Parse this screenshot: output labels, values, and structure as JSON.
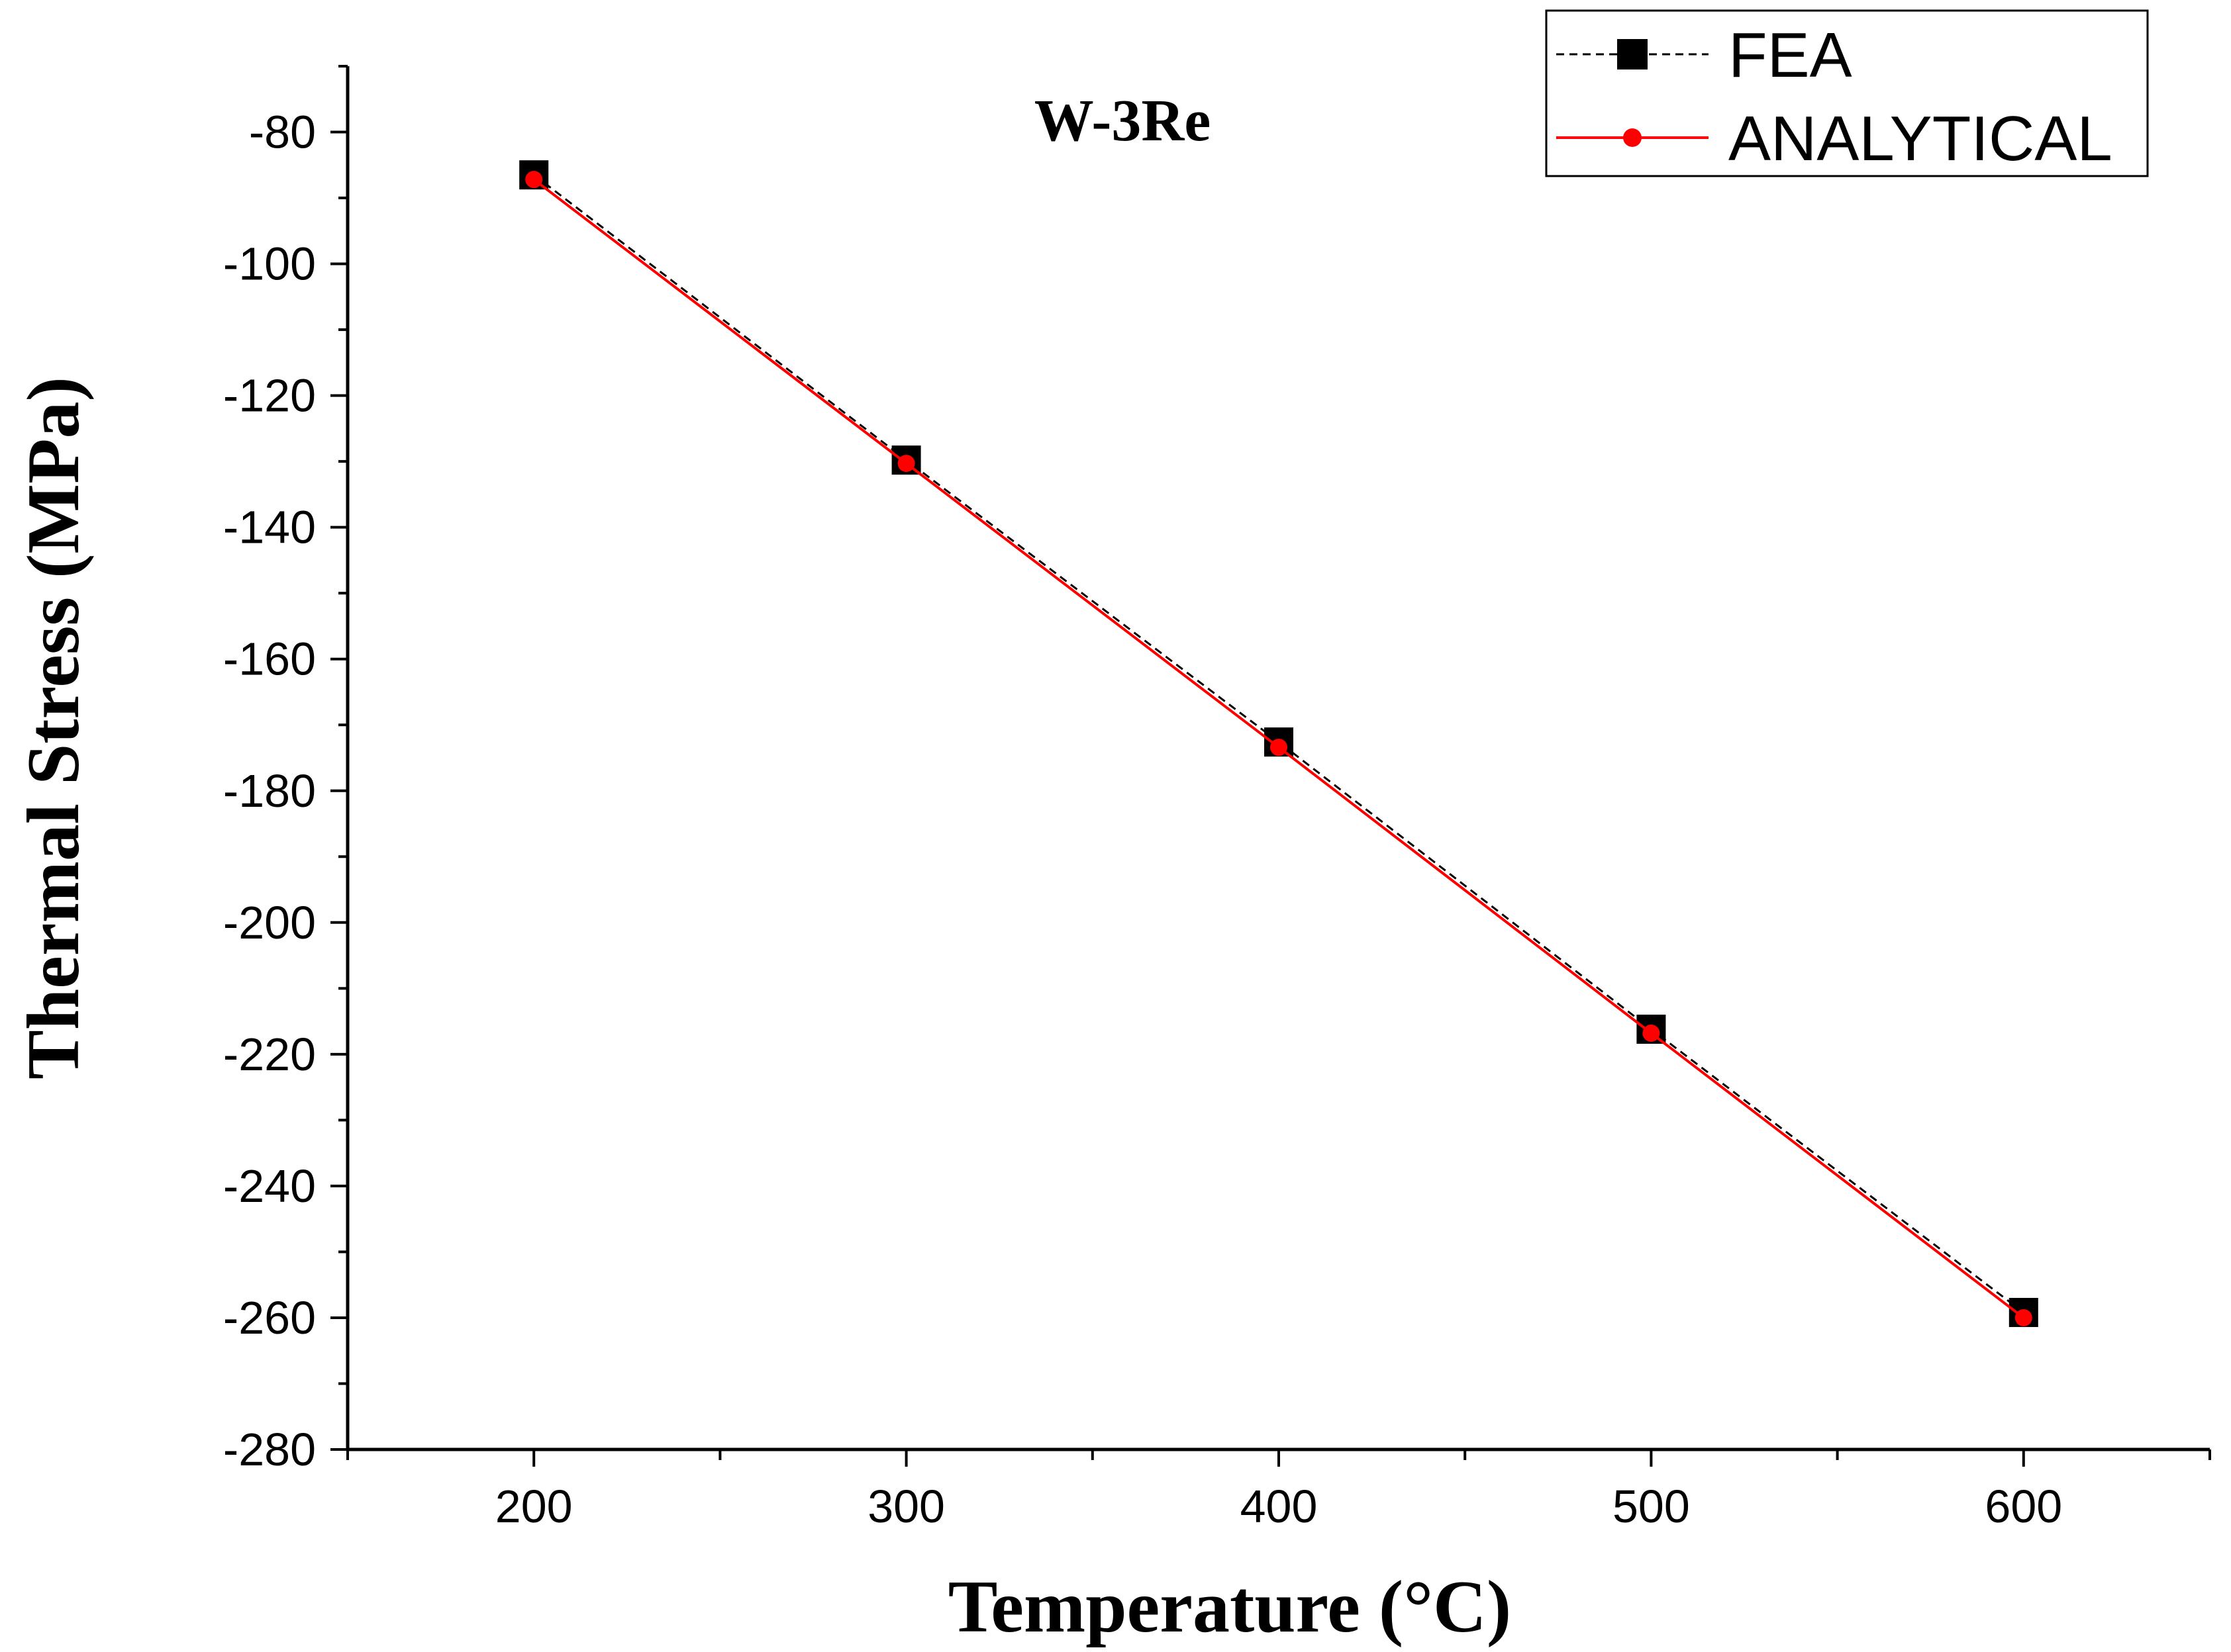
{
  "chart_data": {
    "type": "line",
    "title": "W-3Re",
    "xlabel": "Temperature (°C)",
    "ylabel": "Thermal Stress (MPa)",
    "xlim": [
      150,
      650
    ],
    "ylim": [
      -280,
      -70
    ],
    "x_ticks": [
      200,
      300,
      400,
      500,
      600
    ],
    "x_tick_labels": [
      "200",
      "300",
      "400",
      "500",
      "600"
    ],
    "y_ticks": [
      -80,
      -100,
      -120,
      -140,
      -160,
      -180,
      -200,
      -220,
      -240,
      -260,
      -280
    ],
    "y_tick_labels": [
      "-80",
      "-100",
      "-120",
      "-140",
      "-160",
      "-180",
      "-200",
      "-220",
      "-240",
      "-260",
      "-280"
    ],
    "grid": false,
    "legend_position": "top-right",
    "x": [
      200,
      300,
      400,
      500,
      600
    ],
    "series": [
      {
        "name": "FEA",
        "values": [
          -86.5,
          -129.8,
          -172.6,
          -216.2,
          -259.2
        ],
        "color": "#000000",
        "line": "dashed",
        "marker": "square"
      },
      {
        "name": "ANALYTICAL",
        "values": [
          -87.2,
          -130.3,
          -173.4,
          -216.8,
          -260.0
        ],
        "color": "#ff0000",
        "line": "solid",
        "marker": "circle"
      }
    ]
  }
}
